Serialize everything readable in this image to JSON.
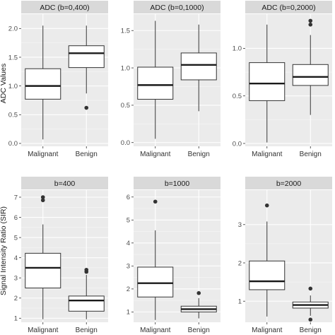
{
  "colors": {
    "panel_bg": "#ebebeb",
    "grid_major": "#ffffff",
    "strip_bg": "#d9d9d9",
    "box_fill": "#ffffff",
    "box_line": "#333333",
    "outlier": "#333333"
  },
  "chart_data": [
    {
      "type": "boxplot",
      "title": "ADC (b=0,400)",
      "ylabel": "",
      "categories": [
        "Malignant",
        "Benign"
      ],
      "ylim": [
        -0.05,
        2.25
      ],
      "yticks": [
        0.0,
        0.5,
        1.0,
        1.5,
        2.0
      ],
      "ytick_labels": [
        "0.0",
        "0.5",
        "1.0",
        "1.5",
        "2.0"
      ],
      "boxes": [
        {
          "category": "Malignant",
          "whisker_low": 0.07,
          "q1": 0.77,
          "median": 1.0,
          "q3": 1.3,
          "whisker_high": 2.05,
          "outliers": []
        },
        {
          "category": "Benign",
          "whisker_low": 0.87,
          "q1": 1.32,
          "median": 1.57,
          "q3": 1.7,
          "whisker_high": 2.05,
          "outliers": [
            0.62
          ]
        }
      ]
    },
    {
      "type": "boxplot",
      "title": "ADC (b=0,1000)",
      "ylabel": "",
      "categories": [
        "Malignant",
        "Benign"
      ],
      "ylim": [
        -0.05,
        1.72
      ],
      "yticks": [
        0.0,
        0.5,
        1.0,
        1.5
      ],
      "ytick_labels": [
        "0.0",
        "0.5",
        "1.0",
        "1.5"
      ],
      "boxes": [
        {
          "category": "Malignant",
          "whisker_low": 0.05,
          "q1": 0.58,
          "median": 0.77,
          "q3": 1.01,
          "whisker_high": 1.63,
          "outliers": []
        },
        {
          "category": "Benign",
          "whisker_low": 0.42,
          "q1": 0.84,
          "median": 1.04,
          "q3": 1.2,
          "whisker_high": 1.58,
          "outliers": []
        }
      ]
    },
    {
      "type": "boxplot",
      "title": "ADC (b=0,2000)",
      "ylabel": "",
      "categories": [
        "Malignant",
        "Benign"
      ],
      "ylim": [
        -0.03,
        1.36
      ],
      "yticks": [
        0.0,
        0.5,
        1.0
      ],
      "ytick_labels": [
        "0.0",
        "0.5",
        "1.0"
      ],
      "boxes": [
        {
          "category": "Malignant",
          "whisker_low": 0.01,
          "q1": 0.45,
          "median": 0.63,
          "q3": 0.85,
          "whisker_high": 1.25,
          "outliers": []
        },
        {
          "category": "Benign",
          "whisker_low": 0.3,
          "q1": 0.61,
          "median": 0.7,
          "q3": 0.83,
          "whisker_high": 1.14,
          "outliers": [
            1.25,
            1.29
          ]
        }
      ]
    },
    {
      "type": "boxplot",
      "title": "b=400",
      "ylabel": "",
      "categories": [
        "Malignant",
        "Benign"
      ],
      "ylim": [
        0.8,
        7.35
      ],
      "yticks": [
        1,
        2,
        3,
        4,
        5,
        6,
        7
      ],
      "ytick_labels": [
        "1",
        "2",
        "3",
        "4",
        "5",
        "6",
        "7"
      ],
      "boxes": [
        {
          "category": "Malignant",
          "whisker_low": 0.95,
          "q1": 2.5,
          "median": 3.5,
          "q3": 4.22,
          "whisker_high": 5.65,
          "outliers": [
            6.85,
            7.0
          ]
        },
        {
          "category": "Benign",
          "whisker_low": 0.95,
          "q1": 1.35,
          "median": 1.88,
          "q3": 2.1,
          "whisker_high": 3.15,
          "outliers": [
            3.3,
            3.4
          ]
        }
      ]
    },
    {
      "type": "boxplot",
      "title": "b=1000",
      "ylabel": "",
      "categories": [
        "Malignant",
        "Benign"
      ],
      "ylim": [
        0.55,
        6.3
      ],
      "yticks": [
        1,
        2,
        3,
        4,
        5,
        6
      ],
      "ytick_labels": [
        "1",
        "2",
        "3",
        "4",
        "5",
        "6"
      ],
      "boxes": [
        {
          "category": "Malignant",
          "whisker_low": 0.65,
          "q1": 1.65,
          "median": 2.25,
          "q3": 2.95,
          "whisker_high": 4.55,
          "outliers": [
            5.8
          ]
        },
        {
          "category": "Benign",
          "whisker_low": 0.72,
          "q1": 1.0,
          "median": 1.12,
          "q3": 1.25,
          "whisker_high": 1.6,
          "outliers": [
            1.82
          ]
        }
      ]
    },
    {
      "type": "boxplot",
      "title": "b=2000",
      "ylabel": "",
      "categories": [
        "Malignant",
        "Benign"
      ],
      "ylim": [
        0.45,
        3.9
      ],
      "yticks": [
        1,
        2,
        3
      ],
      "ytick_labels": [
        "1",
        "2",
        "3"
      ],
      "boxes": [
        {
          "category": "Malignant",
          "whisker_low": 0.6,
          "q1": 1.3,
          "median": 1.52,
          "q3": 2.05,
          "whisker_high": 3.08,
          "outliers": [
            3.5
          ]
        },
        {
          "category": "Benign",
          "whisker_low": 0.62,
          "q1": 0.82,
          "median": 0.9,
          "q3": 0.98,
          "whisker_high": 1.15,
          "outliers": [
            1.33,
            0.52
          ]
        }
      ]
    }
  ],
  "y_axis_titles": [
    "ADC Values",
    "Signal Intensity Ratio (SIR)"
  ]
}
